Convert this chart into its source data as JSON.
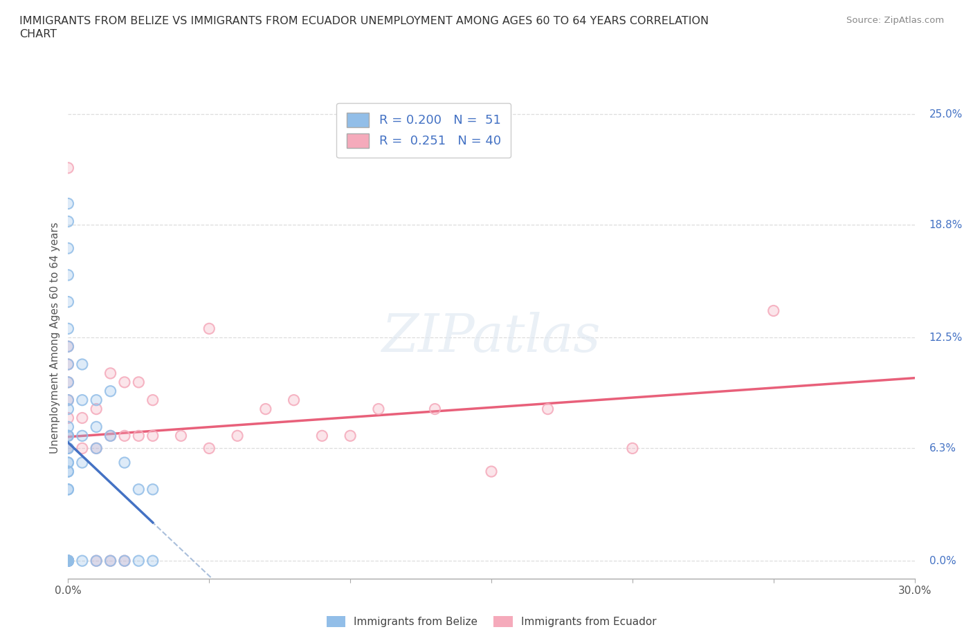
{
  "title": "IMMIGRANTS FROM BELIZE VS IMMIGRANTS FROM ECUADOR UNEMPLOYMENT AMONG AGES 60 TO 64 YEARS CORRELATION\nCHART",
  "source": "Source: ZipAtlas.com",
  "ylabel": "Unemployment Among Ages 60 to 64 years",
  "xlim": [
    0.0,
    0.3
  ],
  "ylim": [
    -0.01,
    0.26
  ],
  "x_ticks": [
    0.0,
    0.05,
    0.1,
    0.15,
    0.2,
    0.25,
    0.3
  ],
  "x_tick_labels": [
    "0.0%",
    "",
    "",
    "",
    "",
    "",
    "30.0%"
  ],
  "y_tick_labels_right": [
    "0.0%",
    "6.3%",
    "12.5%",
    "18.8%",
    "25.0%"
  ],
  "y_ticks_right": [
    0.0,
    0.063,
    0.125,
    0.188,
    0.25
  ],
  "belize_color": "#92BEE8",
  "ecuador_color": "#F5AABB",
  "belize_trend_color": "#4472C4",
  "ecuador_trend_color": "#E8607A",
  "belize_R": 0.2,
  "belize_N": 51,
  "ecuador_R": 0.251,
  "ecuador_N": 40,
  "belize_x": [
    0.0,
    0.0,
    0.0,
    0.0,
    0.0,
    0.0,
    0.0,
    0.0,
    0.0,
    0.0,
    0.0,
    0.0,
    0.0,
    0.0,
    0.0,
    0.0,
    0.0,
    0.0,
    0.0,
    0.0,
    0.0,
    0.0,
    0.0,
    0.0,
    0.0,
    0.005,
    0.005,
    0.005,
    0.005,
    0.005,
    0.01,
    0.01,
    0.01,
    0.01,
    0.015,
    0.015,
    0.015,
    0.02,
    0.02,
    0.025,
    0.025,
    0.03,
    0.03,
    0.0,
    0.0,
    0.0,
    0.0,
    0.0,
    0.0,
    0.0,
    0.0
  ],
  "belize_y": [
    0.0,
    0.0,
    0.0,
    0.0,
    0.0,
    0.0,
    0.0,
    0.0,
    0.04,
    0.05,
    0.055,
    0.063,
    0.07,
    0.075,
    0.085,
    0.09,
    0.1,
    0.11,
    0.12,
    0.13,
    0.145,
    0.16,
    0.175,
    0.19,
    0.2,
    0.0,
    0.055,
    0.07,
    0.09,
    0.11,
    0.0,
    0.063,
    0.075,
    0.09,
    0.0,
    0.07,
    0.095,
    0.0,
    0.055,
    0.0,
    0.04,
    0.0,
    0.04,
    0.0,
    0.0,
    0.0,
    0.04,
    0.05,
    0.055,
    0.063,
    0.07
  ],
  "ecuador_x": [
    0.0,
    0.0,
    0.0,
    0.0,
    0.0,
    0.0,
    0.0,
    0.0,
    0.0,
    0.0,
    0.0,
    0.005,
    0.005,
    0.01,
    0.01,
    0.01,
    0.015,
    0.015,
    0.015,
    0.02,
    0.02,
    0.02,
    0.025,
    0.025,
    0.03,
    0.03,
    0.04,
    0.05,
    0.05,
    0.06,
    0.07,
    0.08,
    0.09,
    0.1,
    0.11,
    0.13,
    0.15,
    0.17,
    0.2,
    0.25
  ],
  "ecuador_y": [
    0.0,
    0.0,
    0.0,
    0.063,
    0.07,
    0.08,
    0.09,
    0.1,
    0.11,
    0.12,
    0.22,
    0.063,
    0.08,
    0.0,
    0.063,
    0.085,
    0.0,
    0.07,
    0.105,
    0.0,
    0.07,
    0.1,
    0.07,
    0.1,
    0.07,
    0.09,
    0.07,
    0.063,
    0.13,
    0.07,
    0.085,
    0.09,
    0.07,
    0.07,
    0.085,
    0.085,
    0.05,
    0.085,
    0.063,
    0.14
  ]
}
